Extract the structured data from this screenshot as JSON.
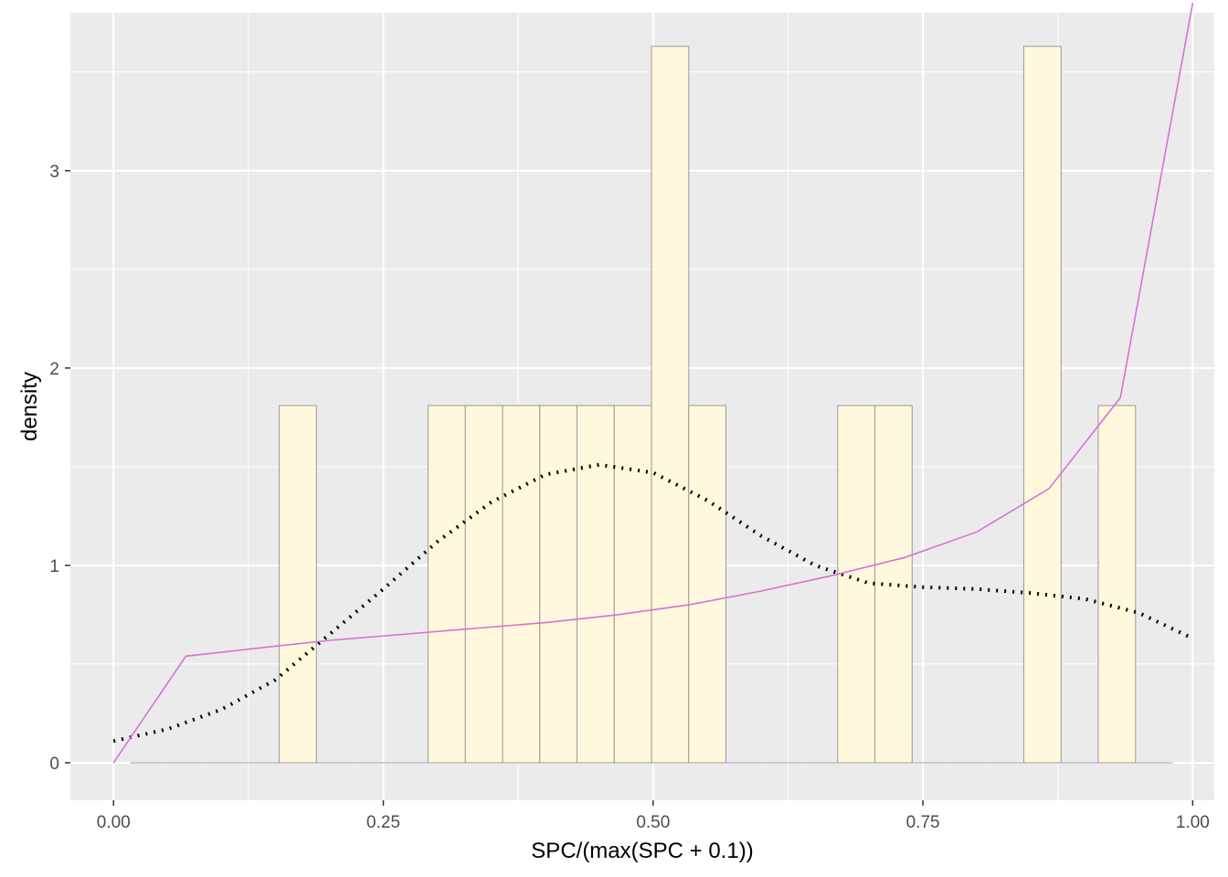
{
  "chart_data": {
    "type": "bar",
    "title": "",
    "xlabel": "SPC/(max(SPC + 0.1))",
    "ylabel": "density",
    "xlim": [
      -0.04,
      1.02
    ],
    "ylim": [
      -0.19,
      3.8
    ],
    "x_ticks": [
      {
        "value": 0.0,
        "label": "0.00"
      },
      {
        "value": 0.25,
        "label": "0.25"
      },
      {
        "value": 0.5,
        "label": "0.50"
      },
      {
        "value": 0.75,
        "label": "0.75"
      },
      {
        "value": 1.0,
        "label": "1.00"
      }
    ],
    "y_ticks": [
      {
        "value": 0,
        "label": "0"
      },
      {
        "value": 1,
        "label": "1"
      },
      {
        "value": 2,
        "label": "2"
      },
      {
        "value": 3,
        "label": "3"
      }
    ],
    "histogram": {
      "fill": "#FFF8DC",
      "stroke": "#9a9a9a",
      "bins": [
        {
          "x0": 0.0155,
          "x1": 0.05,
          "density": 0
        },
        {
          "x0": 0.05,
          "x1": 0.0845,
          "density": 0
        },
        {
          "x0": 0.0845,
          "x1": 0.119,
          "density": 0
        },
        {
          "x0": 0.119,
          "x1": 0.1535,
          "density": 0
        },
        {
          "x0": 0.1535,
          "x1": 0.188,
          "density": 1.81
        },
        {
          "x0": 0.188,
          "x1": 0.2225,
          "density": 0
        },
        {
          "x0": 0.2225,
          "x1": 0.257,
          "density": 0
        },
        {
          "x0": 0.257,
          "x1": 0.2915,
          "density": 0
        },
        {
          "x0": 0.2915,
          "x1": 0.326,
          "density": 1.81
        },
        {
          "x0": 0.326,
          "x1": 0.3605,
          "density": 1.81
        },
        {
          "x0": 0.3605,
          "x1": 0.395,
          "density": 1.81
        },
        {
          "x0": 0.395,
          "x1": 0.4295,
          "density": 1.81
        },
        {
          "x0": 0.4295,
          "x1": 0.464,
          "density": 1.81
        },
        {
          "x0": 0.464,
          "x1": 0.4985,
          "density": 1.81
        },
        {
          "x0": 0.4985,
          "x1": 0.533,
          "density": 3.63
        },
        {
          "x0": 0.533,
          "x1": 0.5675,
          "density": 1.81
        },
        {
          "x0": 0.5675,
          "x1": 0.602,
          "density": 0
        },
        {
          "x0": 0.602,
          "x1": 0.6365,
          "density": 0
        },
        {
          "x0": 0.6365,
          "x1": 0.671,
          "density": 0
        },
        {
          "x0": 0.671,
          "x1": 0.7055,
          "density": 1.81
        },
        {
          "x0": 0.7055,
          "x1": 0.74,
          "density": 1.81
        },
        {
          "x0": 0.74,
          "x1": 0.7745,
          "density": 0
        },
        {
          "x0": 0.7745,
          "x1": 0.809,
          "density": 0
        },
        {
          "x0": 0.809,
          "x1": 0.8435,
          "density": 0
        },
        {
          "x0": 0.8435,
          "x1": 0.878,
          "density": 3.63
        },
        {
          "x0": 0.878,
          "x1": 0.9125,
          "density": 0
        },
        {
          "x0": 0.9125,
          "x1": 0.947,
          "density": 1.81
        },
        {
          "x0": 0.947,
          "x1": 0.9815,
          "density": 0
        }
      ]
    },
    "series": [
      {
        "style": "dotted",
        "color": "#000000",
        "x": [
          0.0,
          0.05,
          0.1,
          0.15,
          0.2,
          0.25,
          0.3,
          0.35,
          0.4,
          0.45,
          0.5,
          0.55,
          0.6,
          0.65,
          0.7,
          0.75,
          0.8,
          0.85,
          0.9,
          0.95,
          1.0
        ],
        "y": [
          0.11,
          0.17,
          0.27,
          0.42,
          0.65,
          0.88,
          1.12,
          1.32,
          1.46,
          1.51,
          1.47,
          1.33,
          1.15,
          1.0,
          0.91,
          0.89,
          0.88,
          0.86,
          0.83,
          0.76,
          0.63
        ]
      },
      {
        "style": "solid",
        "color": "#DA70D6",
        "x": [
          0.0,
          0.067,
          0.133,
          0.2,
          0.267,
          0.333,
          0.4,
          0.467,
          0.533,
          0.6,
          0.667,
          0.733,
          0.8,
          0.867,
          0.933,
          1.0
        ],
        "y": [
          0.0,
          0.54,
          0.58,
          0.62,
          0.65,
          0.68,
          0.71,
          0.75,
          0.8,
          0.87,
          0.95,
          1.04,
          1.17,
          1.39,
          1.85,
          3.85
        ]
      }
    ],
    "grid": true,
    "panel_background": "#EBEBEB",
    "grid_color": "#FFFFFF"
  }
}
